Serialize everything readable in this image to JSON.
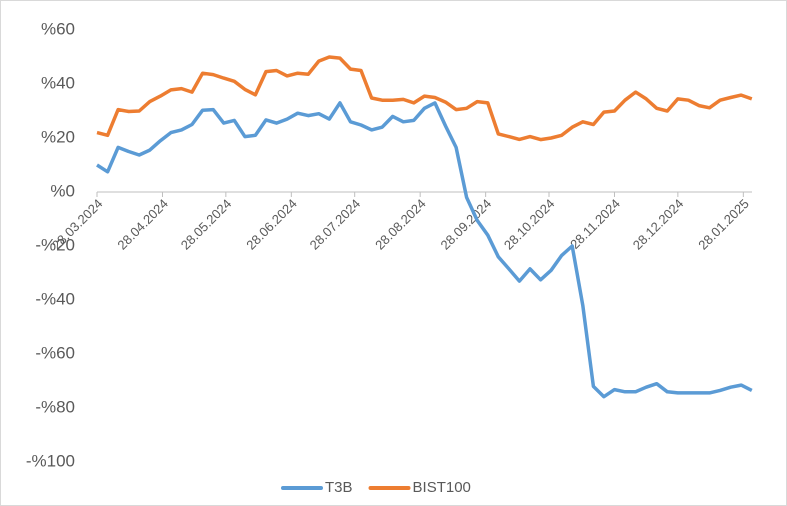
{
  "chart_data": {
    "type": "line",
    "x": [
      "2024-03-28",
      "2024-04-02",
      "2024-04-07",
      "2024-04-12",
      "2024-04-17",
      "2024-04-22",
      "2024-04-27",
      "2024-05-02",
      "2024-05-07",
      "2024-05-12",
      "2024-05-17",
      "2024-05-22",
      "2024-05-27",
      "2024-06-01",
      "2024-06-06",
      "2024-06-11",
      "2024-06-16",
      "2024-06-21",
      "2024-06-26",
      "2024-07-01",
      "2024-07-06",
      "2024-07-11",
      "2024-07-16",
      "2024-07-21",
      "2024-07-26",
      "2024-07-31",
      "2024-08-05",
      "2024-08-10",
      "2024-08-15",
      "2024-08-20",
      "2024-08-25",
      "2024-08-30",
      "2024-09-04",
      "2024-09-09",
      "2024-09-14",
      "2024-09-19",
      "2024-09-24",
      "2024-09-29",
      "2024-10-04",
      "2024-10-09",
      "2024-10-14",
      "2024-10-19",
      "2024-10-24",
      "2024-10-29",
      "2024-11-03",
      "2024-11-08",
      "2024-11-13",
      "2024-11-18",
      "2024-11-23",
      "2024-11-28",
      "2024-12-03",
      "2024-12-08",
      "2024-12-13",
      "2024-12-18",
      "2024-12-23",
      "2024-12-28",
      "2025-01-02",
      "2025-01-07",
      "2025-01-12",
      "2025-01-17",
      "2025-01-22",
      "2025-01-27",
      "2025-02-01"
    ],
    "series": [
      {
        "name": "T3B",
        "color": "#5b9bd5",
        "values": [
          10,
          7.5,
          16.5,
          15,
          13.7,
          15.5,
          19,
          22,
          23,
          25,
          30.3,
          30.5,
          25.5,
          26.5,
          20.5,
          21,
          26.7,
          25.5,
          27,
          29.2,
          28.3,
          29,
          27,
          33,
          26,
          24.8,
          23,
          24,
          28,
          26,
          26.5,
          31,
          33,
          24.5,
          16.5,
          -2,
          -10.5,
          -16,
          -24,
          -28.5,
          -33,
          -28.5,
          -32.5,
          -29,
          -23.5,
          -20,
          -42,
          -72,
          -75.8,
          -73.2,
          -74,
          -74,
          -72.3,
          -71,
          -74,
          -74.4,
          -74.4,
          -74.4,
          -74.4,
          -73.5,
          -72.3,
          -71.5,
          -73.5
        ]
      },
      {
        "name": "BIST100",
        "color": "#ed7d31",
        "values": [
          22,
          21,
          30.5,
          29.8,
          30,
          33.5,
          35.5,
          37.8,
          38.3,
          37,
          44,
          43.5,
          42.2,
          41,
          38,
          36,
          44.6,
          45,
          43,
          44,
          43.6,
          48.5,
          50,
          49.6,
          45.5,
          45,
          34.8,
          34,
          34,
          34.3,
          33,
          35.5,
          35,
          33.3,
          30.5,
          31,
          33.5,
          33,
          21.5,
          20.5,
          19.5,
          20.5,
          19.4,
          20,
          21,
          24,
          26,
          25,
          29.6,
          30,
          34,
          37,
          34.5,
          31,
          30,
          34.5,
          34,
          32,
          31.2,
          34,
          35,
          35.9,
          34.5
        ]
      }
    ],
    "xlim": [
      "2024-03-28",
      "2025-02-03"
    ],
    "xticks": [
      {
        "value": "2024-03-28",
        "label": "28.03.2024"
      },
      {
        "value": "2024-04-28",
        "label": "28.04.2024"
      },
      {
        "value": "2024-05-28",
        "label": "28.05.2024"
      },
      {
        "value": "2024-06-28",
        "label": "28.06.2024"
      },
      {
        "value": "2024-07-28",
        "label": "28.07.2024"
      },
      {
        "value": "2024-08-28",
        "label": "28.08.2024"
      },
      {
        "value": "2024-09-28",
        "label": "28.09.2024"
      },
      {
        "value": "2024-10-28",
        "label": "28.10.2024"
      },
      {
        "value": "2024-11-28",
        "label": "28.11.2024"
      },
      {
        "value": "2024-12-28",
        "label": "28.12.2024"
      },
      {
        "value": "2025-01-28",
        "label": "28.01.2025"
      }
    ],
    "ylim": [
      -100,
      60
    ],
    "yticks": [
      {
        "value": 60,
        "label": "%60"
      },
      {
        "value": 40,
        "label": "%40"
      },
      {
        "value": 20,
        "label": "%20"
      },
      {
        "value": 0,
        "label": "%0"
      },
      {
        "value": -20,
        "label": "-%20"
      },
      {
        "value": -40,
        "label": "-%40"
      },
      {
        "value": -60,
        "label": "-%60"
      },
      {
        "value": -80,
        "label": "-%80"
      },
      {
        "value": -100,
        "label": "-%100"
      }
    ],
    "legend": "bottom"
  }
}
